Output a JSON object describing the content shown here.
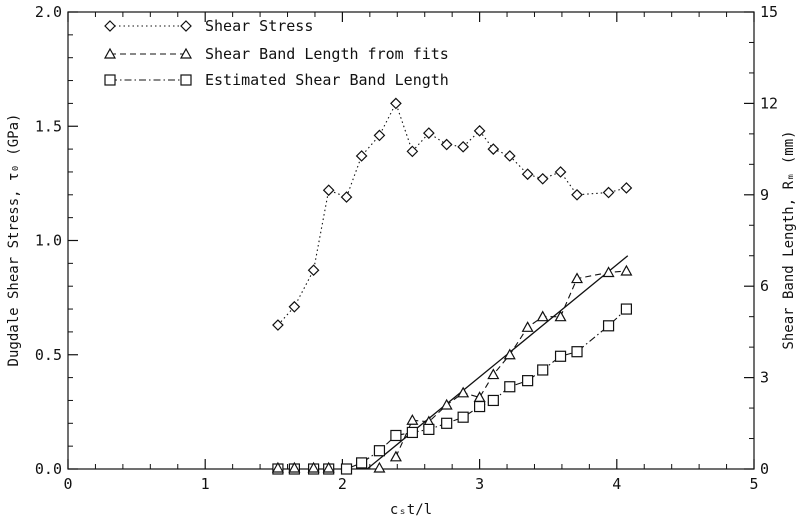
{
  "chart_data": {
    "type": "line",
    "xlabel": "cₛt/l",
    "ylabel_left": "Dugdale Shear Stress, τ₀ (GPa)",
    "ylabel_right": "Shear Band Length, Rₘ (mm)",
    "xlim": [
      0,
      5
    ],
    "ylim_left": [
      0,
      2.0
    ],
    "ylim_right": [
      0,
      15
    ],
    "x_ticks": [
      "0",
      "1",
      "2",
      "3",
      "4",
      "5"
    ],
    "y_left_ticks": [
      "0.0",
      "0.5",
      "1.0",
      "1.5",
      "2.0"
    ],
    "y_right_ticks": [
      "0",
      "3",
      "6",
      "9",
      "12",
      "15"
    ],
    "grid": false,
    "legend_position": "top-left",
    "series": [
      {
        "name": "Shear Stress",
        "axis": "left",
        "marker": "diamond",
        "line": "dotted",
        "x": [
          1.53,
          1.65,
          1.79,
          1.9,
          2.03,
          2.14,
          2.27,
          2.39,
          2.51,
          2.63,
          2.76,
          2.88,
          3.0,
          3.1,
          3.22,
          3.35,
          3.46,
          3.59,
          3.71,
          3.94,
          4.07
        ],
        "y": [
          0.63,
          0.71,
          0.87,
          1.22,
          1.19,
          1.37,
          1.46,
          1.6,
          1.39,
          1.47,
          1.42,
          1.41,
          1.48,
          1.4,
          1.37,
          1.29,
          1.27,
          1.3,
          1.2,
          1.21,
          1.23
        ]
      },
      {
        "name": "Shear Band Length from fits",
        "axis": "right",
        "marker": "triangle",
        "line": "dashed",
        "x": [
          2.39,
          2.51,
          2.63,
          2.76,
          2.88,
          3.0,
          3.1,
          3.22,
          3.35,
          3.46,
          3.59,
          3.71,
          3.94,
          4.07
        ],
        "y": [
          0.4,
          1.6,
          1.55,
          2.1,
          2.5,
          2.35,
          3.1,
          3.75,
          4.65,
          5.0,
          5.0,
          6.25,
          6.45,
          6.5
        ]
      },
      {
        "name": "Estimated Shear Band Length",
        "axis": "right",
        "marker": "square",
        "line": "dashdot",
        "x": [
          1.53,
          1.65,
          1.79,
          1.9,
          2.03,
          2.14,
          2.27,
          2.39,
          2.51,
          2.63,
          2.76,
          2.88,
          3.0,
          3.1,
          3.22,
          3.35,
          3.46,
          3.59,
          3.71,
          3.94,
          4.07
        ],
        "y": [
          0,
          0,
          0,
          0,
          0,
          0.2,
          0.6,
          1.1,
          1.2,
          1.3,
          1.5,
          1.7,
          2.05,
          2.25,
          2.7,
          2.9,
          3.25,
          3.7,
          3.85,
          4.7,
          5.25
        ]
      }
    ],
    "fit_line": {
      "axis": "right",
      "x": [
        2.18,
        4.08
      ],
      "y": [
        0,
        7.0
      ]
    },
    "extra_triangles_at_zero": {
      "axis": "right",
      "x": [
        1.53,
        1.65,
        1.79,
        1.9,
        2.27
      ]
    }
  }
}
